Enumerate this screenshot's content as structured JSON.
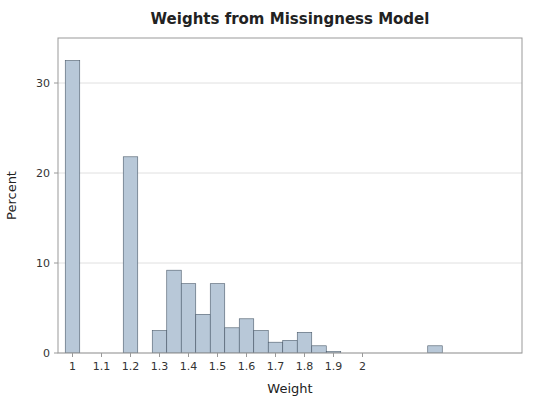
{
  "chart_data": {
    "type": "histogram",
    "title": "Weights from Missingness Model",
    "xlabel": "Weight",
    "ylabel": "Percent",
    "color": "#b8c8d8",
    "x": [
      0.975,
      1.175,
      1.275,
      1.325,
      1.375,
      1.425,
      1.475,
      1.525,
      1.575,
      1.625,
      1.675,
      1.725,
      1.775,
      1.825,
      1.875,
      2.225
    ],
    "widths": [
      0.05,
      0.05,
      0.05,
      0.05,
      0.05,
      0.05,
      0.05,
      0.05,
      0.05,
      0.05,
      0.05,
      0.05,
      0.05,
      0.05,
      0.05,
      0.05
    ],
    "values": [
      32.5,
      21.8,
      2.5,
      9.2,
      7.7,
      4.3,
      7.7,
      2.8,
      3.8,
      2.5,
      1.2,
      1.4,
      2.3,
      0.8,
      0.15,
      0.8
    ],
    "xlim": [
      0.95,
      2.55
    ],
    "xticks": [
      1,
      1.1,
      1.2,
      1.3,
      1.4,
      1.5,
      1.6,
      1.7,
      1.8,
      1.9,
      2
    ],
    "ylim": [
      0,
      35
    ],
    "yticks": [
      0,
      10,
      20,
      30
    ],
    "grid": true
  }
}
